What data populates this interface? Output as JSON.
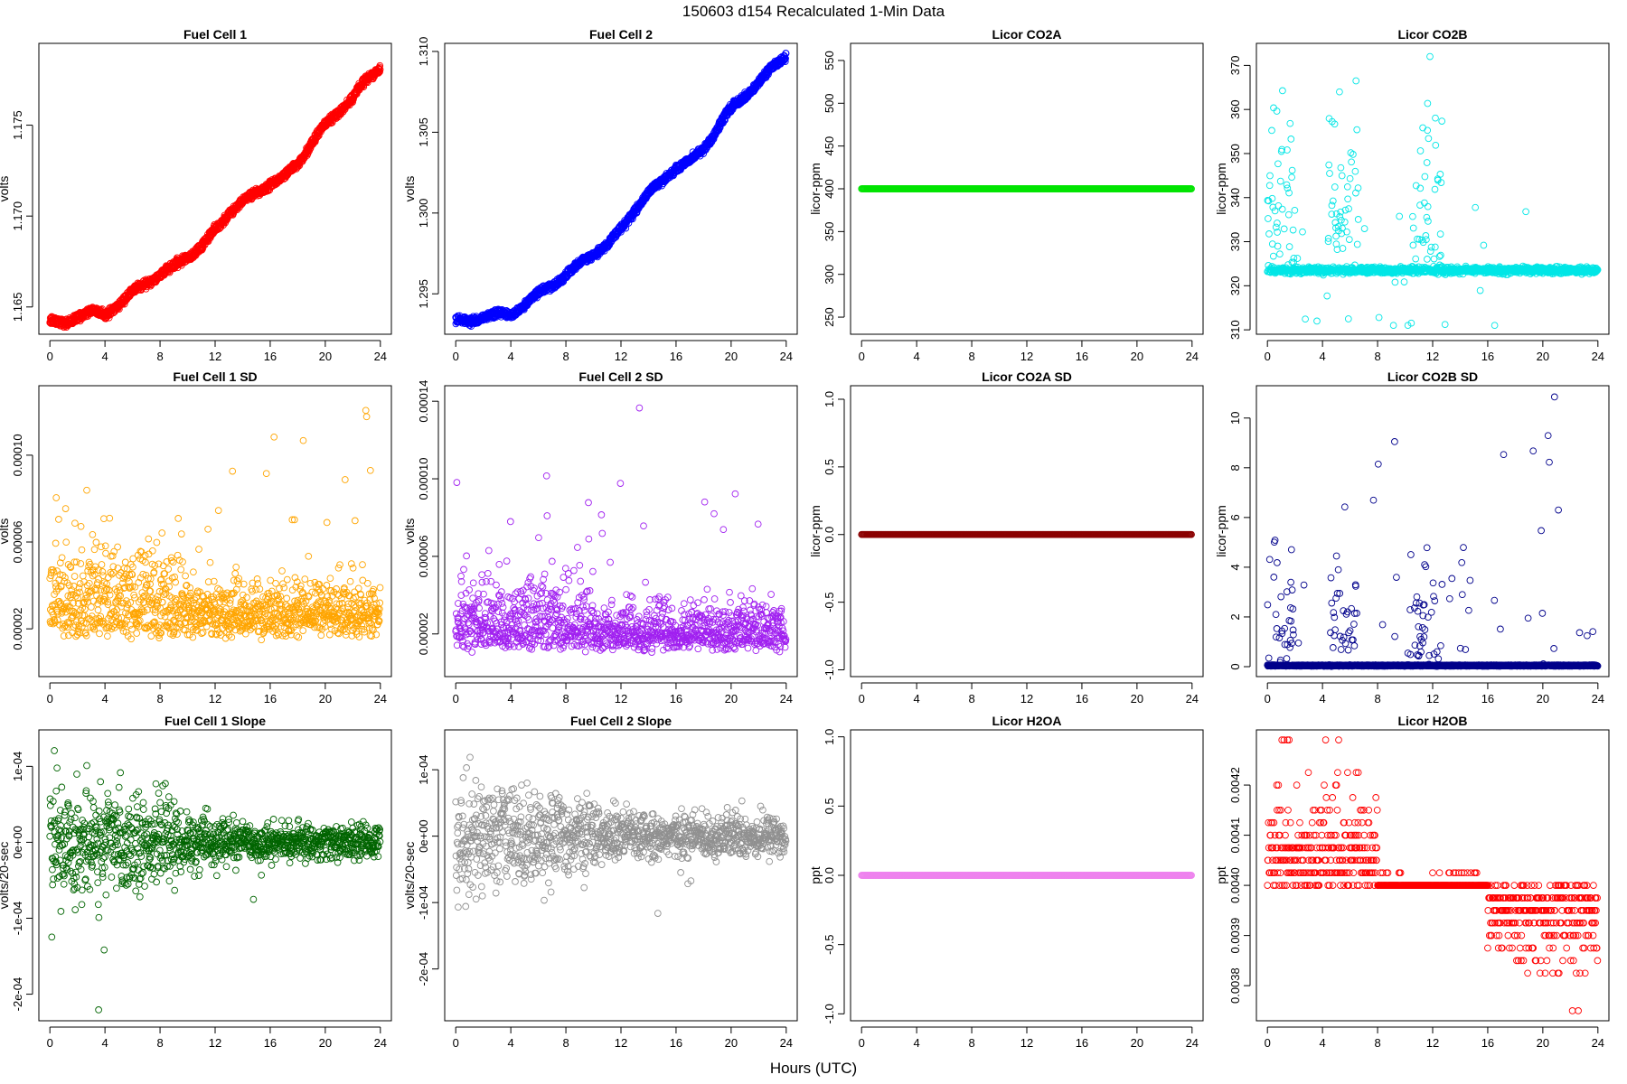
{
  "figure": {
    "title": "150603   d154   Recalculated 1-Min Data",
    "xlabel": "Hours (UTC)"
  },
  "chart_data": [
    {
      "type": "scatter",
      "title": "Fuel Cell 1",
      "ylabel": "volts",
      "color": "#ff0000",
      "gen": "trend",
      "ylim": [
        1.1635,
        1.1795
      ],
      "yticks": [
        1.165,
        1.17,
        1.175
      ],
      "ytick_labels": [
        "1.165",
        "1.170",
        "1.175"
      ],
      "x": [
        0,
        1,
        2,
        3,
        4,
        5,
        6,
        7,
        8,
        9,
        10,
        11,
        12,
        13,
        14,
        15,
        16,
        17,
        18,
        19,
        20,
        21,
        22,
        23,
        24
      ],
      "y": [
        1.1643,
        1.164,
        1.1645,
        1.1648,
        1.1645,
        1.1652,
        1.1658,
        1.1663,
        1.1668,
        1.1672,
        1.1678,
        1.1683,
        1.1692,
        1.1702,
        1.1708,
        1.1713,
        1.1718,
        1.1721,
        1.1729,
        1.174,
        1.175,
        1.1758,
        1.1765,
        1.1775,
        1.1782
      ],
      "noise": 0.00018,
      "band": 0.0002,
      "xlim": [
        -0.8,
        24.8
      ],
      "xticks": [
        0,
        4,
        8,
        12,
        16,
        20,
        24
      ]
    },
    {
      "type": "scatter",
      "title": "Fuel Cell 2",
      "ylabel": "volts",
      "color": "#0000ff",
      "gen": "trend",
      "ylim": [
        1.2925,
        1.3105
      ],
      "yticks": [
        1.295,
        1.3,
        1.305,
        1.31
      ],
      "ytick_labels": [
        "1.295",
        "1.300",
        "1.305",
        "1.310"
      ],
      "x": [
        0,
        1,
        2,
        3,
        4,
        5,
        6,
        7,
        8,
        9,
        10,
        11,
        12,
        13,
        14,
        15,
        16,
        17,
        18,
        19,
        20,
        21,
        22,
        23,
        24
      ],
      "y": [
        1.2934,
        1.2932,
        1.2936,
        1.2938,
        1.2936,
        1.2944,
        1.295,
        1.2955,
        1.2962,
        1.2968,
        1.2975,
        1.298,
        1.299,
        1.3002,
        1.3012,
        1.302,
        1.3028,
        1.3032,
        1.304,
        1.3052,
        1.3065,
        1.3073,
        1.308,
        1.309,
        1.3098
      ],
      "noise": 0.0002,
      "band": 0.00022,
      "xlim": [
        -0.8,
        24.8
      ],
      "xticks": [
        0,
        4,
        8,
        12,
        16,
        20,
        24
      ]
    },
    {
      "type": "scatter",
      "title": "Licor CO2A",
      "ylabel": "licor-ppm",
      "color": "#00e400",
      "gen": "flat",
      "flat": 400,
      "ylim": [
        230,
        570
      ],
      "yticks": [
        250,
        300,
        350,
        400,
        450,
        500,
        550
      ],
      "ytick_labels": [
        "250",
        "300",
        "350",
        "400",
        "450",
        "500",
        "550"
      ],
      "xlim": [
        -0.8,
        24.8
      ],
      "xticks": [
        0,
        4,
        8,
        12,
        16,
        20,
        24
      ]
    },
    {
      "type": "scatter",
      "title": "Licor CO2B",
      "ylabel": "licor-ppm",
      "color": "#00e6e6",
      "gen": "spiky",
      "base": 323.5,
      "spread": 1.5,
      "spike_lo": 311,
      "spike_hi": 372,
      "bursts": [
        0.9,
        5.5,
        11.6
      ],
      "ylim": [
        309,
        375
      ],
      "yticks": [
        310,
        320,
        330,
        340,
        350,
        360,
        370
      ],
      "ytick_labels": [
        "310",
        "320",
        "330",
        "340",
        "350",
        "360",
        "370"
      ],
      "xlim": [
        -0.8,
        24.8
      ],
      "xticks": [
        0,
        4,
        8,
        12,
        16,
        20,
        24
      ]
    },
    {
      "type": "scatter",
      "title": "Fuel Cell 1 SD",
      "ylabel": "volts",
      "color": "#ffa500",
      "gen": "sd",
      "base": 2e-05,
      "spread": 9e-06,
      "peak": 0.000125,
      "ylim": [
        -2e-06,
        0.000132
      ],
      "yticks": [
        2e-05,
        6e-05,
        0.0001
      ],
      "ytick_labels": [
        "0.00002",
        "0.00006",
        "0.00010"
      ],
      "xlim": [
        -0.8,
        24.8
      ],
      "xticks": [
        0,
        4,
        8,
        12,
        16,
        20,
        24
      ]
    },
    {
      "type": "scatter",
      "title": "Fuel Cell 2 SD",
      "ylabel": "volts",
      "color": "#a020f0",
      "gen": "sd",
      "base": 1.5e-05,
      "spread": 8e-06,
      "peak": 0.000142,
      "ylim": [
        -2e-06,
        0.000148
      ],
      "yticks": [
        2e-05,
        6e-05,
        0.0001,
        0.00014
      ],
      "ytick_labels": [
        "0.00002",
        "0.00006",
        "0.00010",
        "0.00014"
      ],
      "xlim": [
        -0.8,
        24.8
      ],
      "xticks": [
        0,
        4,
        8,
        12,
        16,
        20,
        24
      ]
    },
    {
      "type": "scatter",
      "title": "Licor CO2A SD",
      "ylabel": "licor-ppm",
      "color": "#8b0000",
      "gen": "flat",
      "flat": 0,
      "ylim": [
        -1.05,
        1.1
      ],
      "yticks": [
        -1,
        -0.5,
        0,
        0.5,
        1
      ],
      "ytick_labels": [
        "-1.0",
        "-0.5",
        "0.0",
        "0.5",
        "1.0"
      ],
      "xlim": [
        -0.8,
        24.8
      ],
      "xticks": [
        0,
        4,
        8,
        12,
        16,
        20,
        24
      ]
    },
    {
      "type": "scatter",
      "title": "Licor CO2B SD",
      "ylabel": "licor-ppm",
      "color": "#00008b",
      "gen": "sdspike",
      "base": 0.02,
      "peak": 10.9,
      "bursts": [
        0.9,
        5.5,
        11.6
      ],
      "ylim": [
        -0.4,
        11.3
      ],
      "yticks": [
        0,
        2,
        4,
        6,
        8,
        10
      ],
      "ytick_labels": [
        "0",
        "2",
        "4",
        "6",
        "8",
        "10"
      ],
      "xlim": [
        -0.8,
        24.8
      ],
      "xticks": [
        0,
        4,
        8,
        12,
        16,
        20,
        24
      ]
    },
    {
      "type": "scatter",
      "title": "Fuel Cell 1 Slope",
      "ylabel": "volts/20-sec",
      "color": "#006400",
      "gen": "slope",
      "spread_start": 8e-05,
      "spread_end": 2e-05,
      "ylim": [
        -0.000235,
        0.000148
      ],
      "yticks": [
        -0.0002,
        -0.0001,
        0,
        0.0001
      ],
      "ytick_labels": [
        "-2e-04",
        "-1e-04",
        "0e+00",
        "1e-04"
      ],
      "xlim": [
        -0.8,
        24.8
      ],
      "xticks": [
        0,
        4,
        8,
        12,
        16,
        20,
        24
      ]
    },
    {
      "type": "scatter",
      "title": "Fuel Cell 2 Slope",
      "ylabel": "volts/20-sec",
      "color": "#909090",
      "gen": "slope",
      "spread_start": 8.5e-05,
      "spread_end": 3e-05,
      "ylim": [
        -0.000278,
        0.00016
      ],
      "yticks": [
        -0.0002,
        -0.0001,
        0,
        0.0001
      ],
      "ytick_labels": [
        "-2e-04",
        "-1e-04",
        "0e+00",
        "1e-04"
      ],
      "xlim": [
        -0.8,
        24.8
      ],
      "xticks": [
        0,
        4,
        8,
        12,
        16,
        20,
        24
      ]
    },
    {
      "type": "scatter",
      "title": "Licor H2OA",
      "ylabel": "ppt",
      "color": "#ee82ee",
      "gen": "flat",
      "flat": 0,
      "ylim": [
        -1.05,
        1.05
      ],
      "yticks": [
        -1,
        -0.5,
        0,
        0.5,
        1
      ],
      "ytick_labels": [
        "-1.0",
        "-0.5",
        "0.0",
        "0.5",
        "1.0"
      ],
      "xlim": [
        -0.8,
        24.8
      ],
      "xticks": [
        0,
        4,
        8,
        12,
        16,
        20,
        24
      ]
    },
    {
      "type": "scatter",
      "title": "Licor H2OB",
      "ylabel": "ppt",
      "color": "#ff0000",
      "gen": "quant",
      "step": 1.25e-05,
      "ylim": [
        0.00373,
        0.00431
      ],
      "yticks": [
        0.0038,
        0.0039,
        0.004,
        0.0041,
        0.0042
      ],
      "ytick_labels": [
        "0.0038",
        "0.0039",
        "0.0040",
        "0.0041",
        "0.0042"
      ],
      "xlim": [
        -0.8,
        24.8
      ],
      "xticks": [
        0,
        4,
        8,
        12,
        16,
        20,
        24
      ]
    }
  ]
}
